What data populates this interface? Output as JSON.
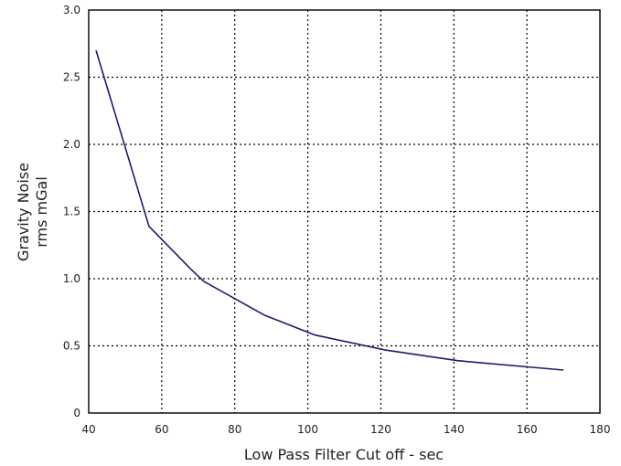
{
  "chart_data": {
    "type": "line",
    "title": "",
    "xlabel": "Low Pass Filter Cut off - sec",
    "ylabel_lines": [
      "Gravity Noise",
      "rms mGal"
    ],
    "xlim": [
      40,
      180
    ],
    "ylim": [
      0,
      3.0
    ],
    "x_ticks": [
      40,
      60,
      80,
      100,
      120,
      140,
      160,
      180
    ],
    "x_tick_labels": [
      "40",
      "60",
      "80",
      "100",
      "120",
      "140",
      "160",
      "180"
    ],
    "y_ticks": [
      0,
      0.5,
      1.0,
      1.5,
      2.0,
      2.5,
      3.0
    ],
    "y_tick_labels": [
      "0",
      "0.5",
      "1.0",
      "1.5",
      "2.0",
      "2.5",
      "3.0"
    ],
    "grid": true,
    "legend": "none",
    "colors": {
      "line": "#1f1a6b",
      "grid": "#000000",
      "axis": "#000000"
    },
    "series": [
      {
        "x": [
          42,
          56.5,
          68,
          71.5,
          88,
          102,
          121,
          141,
          170
        ],
        "y": [
          2.7,
          1.39,
          1.07,
          0.98,
          0.73,
          0.58,
          0.47,
          0.39,
          0.32
        ]
      }
    ]
  }
}
